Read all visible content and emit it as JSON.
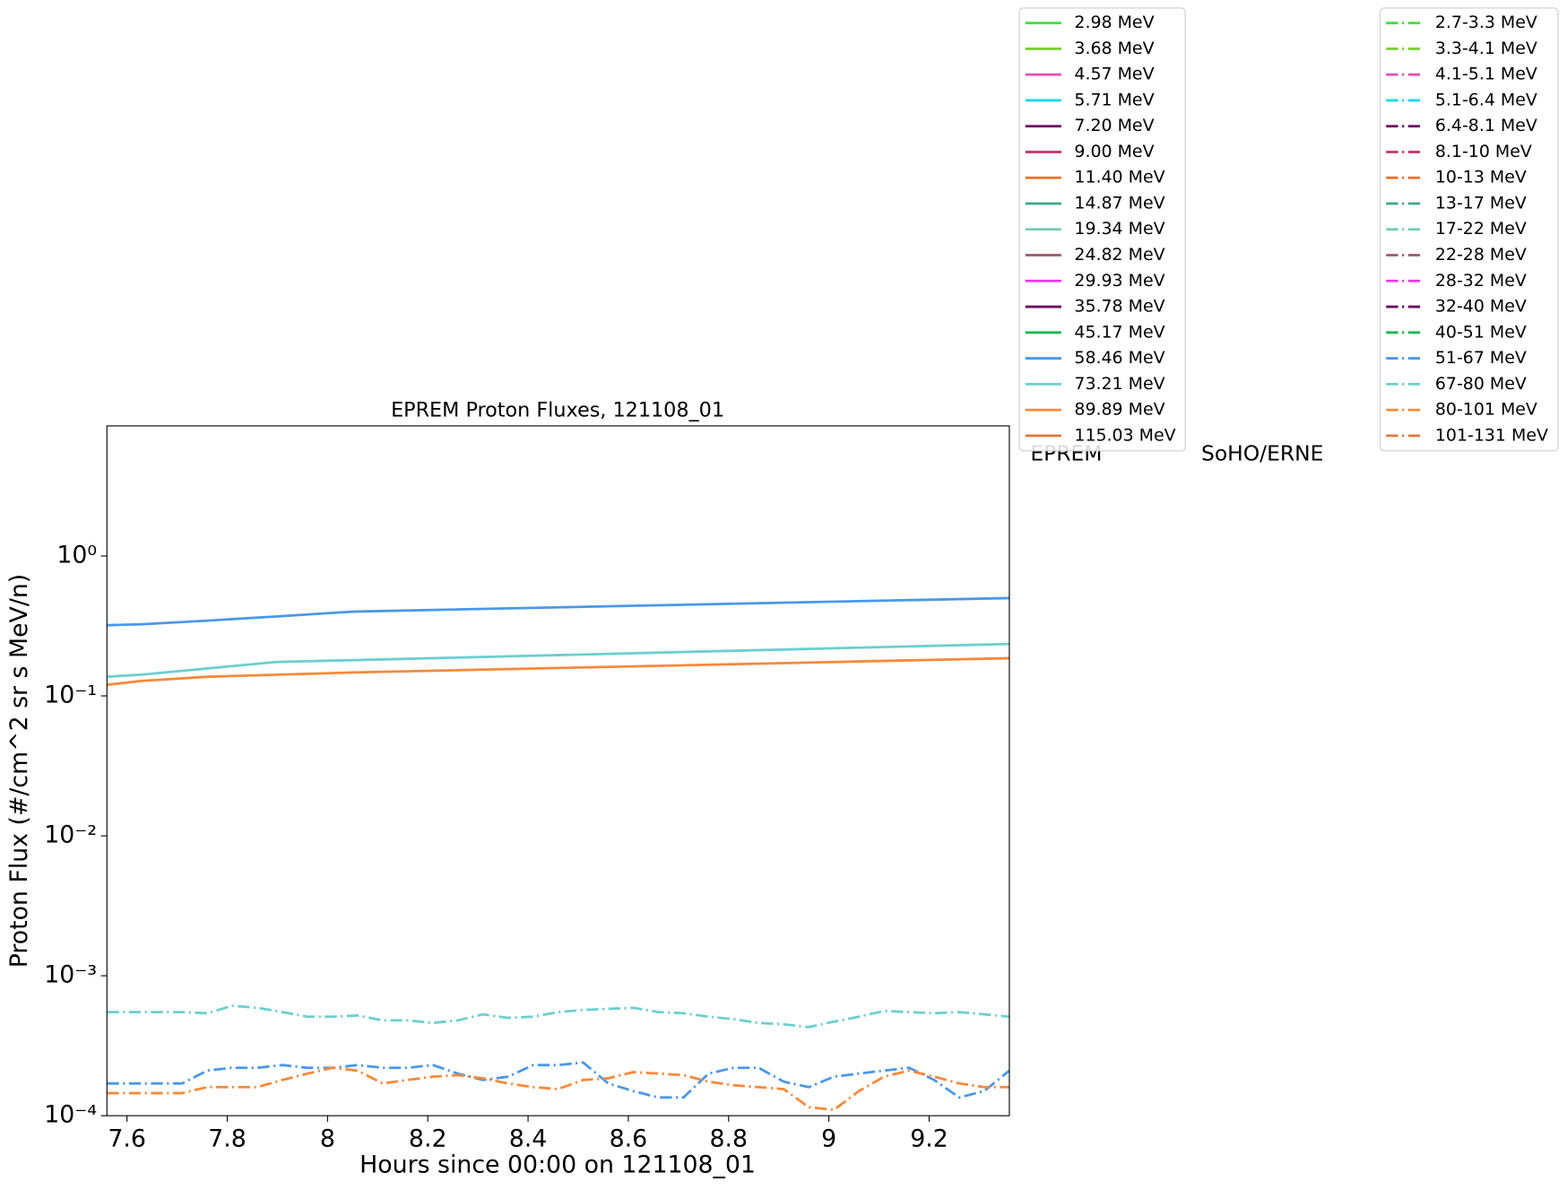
{
  "chart_data": {
    "type": "line",
    "title": "EPREM Proton Fluxes, 121108_01",
    "x_label": "Hours since 00:00 on 121108_01",
    "y_label": "Proton Flux (#/cm^2 sr s MeV/n)",
    "log_y": true,
    "xlim": [
      7.56,
      9.36
    ],
    "ylim": [
      0.0001,
      8.5
    ],
    "xticks": [
      7.6,
      7.8,
      8.0,
      8.2,
      8.4,
      8.6,
      8.8,
      9.0,
      9.2
    ],
    "yticks": [
      {
        "value": 0.0001,
        "label": "10⁻⁴"
      },
      {
        "value": 0.001,
        "label": "10⁻³"
      },
      {
        "value": 0.01,
        "label": "10⁻²"
      },
      {
        "value": 0.1,
        "label": "10⁻¹"
      },
      {
        "value": 1,
        "label": "10⁰"
      }
    ],
    "legend_titles": [
      "EPREM",
      "SoHO/ERNE"
    ],
    "series": [
      {
        "name": "2.98 MeV",
        "color": "#3fe03f",
        "linestyle": "solid"
      },
      {
        "name": "3.68 MeV",
        "color": "#7ccf3a",
        "linestyle": "solid"
      },
      {
        "name": "4.57 MeV",
        "color": "#e055b4",
        "linestyle": "solid"
      },
      {
        "name": "5.71 MeV",
        "color": "#1ad9ee",
        "linestyle": "solid"
      },
      {
        "name": "7.20 MeV",
        "color": "#6b0060",
        "linestyle": "solid"
      },
      {
        "name": "9.00 MeV",
        "color": "#c0306a",
        "linestyle": "solid"
      },
      {
        "name": "11.40 MeV",
        "color": "#e8702a",
        "linestyle": "solid"
      },
      {
        "name": "14.87 MeV",
        "color": "#3aa880",
        "linestyle": "solid"
      },
      {
        "name": "19.34 MeV",
        "color": "#6fcfa8",
        "linestyle": "solid"
      },
      {
        "name": "24.82 MeV",
        "color": "#9a5a6a",
        "linestyle": "solid"
      },
      {
        "name": "29.93 MeV",
        "color": "#e838e8",
        "linestyle": "solid"
      },
      {
        "name": "35.78 MeV",
        "color": "#6b0060",
        "linestyle": "solid"
      },
      {
        "name": "45.17 MeV",
        "color": "#1ab850",
        "linestyle": "solid"
      },
      {
        "name": "58.46 MeV",
        "color": "#4a98e8",
        "linestyle": "solid",
        "x": [
          7.56,
          7.63,
          7.76,
          7.9,
          8.05,
          8.6,
          9.36
        ],
        "values": [
          0.32,
          0.325,
          0.345,
          0.37,
          0.4,
          0.44,
          0.5
        ]
      },
      {
        "name": "73.21 MeV",
        "color": "#6ccfcf",
        "linestyle": "solid",
        "x": [
          7.56,
          7.63,
          7.9,
          8.05,
          9.36
        ],
        "values": [
          0.137,
          0.142,
          0.175,
          0.18,
          0.235
        ]
      },
      {
        "name": "89.89 MeV",
        "color": "#f7893a",
        "linestyle": "solid",
        "x": [
          7.56,
          7.63,
          7.76,
          8.05,
          9.36
        ],
        "values": [
          0.12,
          0.128,
          0.137,
          0.147,
          0.186
        ]
      },
      {
        "name": "115.03 MeV",
        "color": "#e07838",
        "linestyle": "solid"
      },
      {
        "name": "2.7-3.3 MeV",
        "color": "#3fe03f",
        "linestyle": "dashdot"
      },
      {
        "name": "3.3-4.1 MeV",
        "color": "#7ccf3a",
        "linestyle": "dashdot"
      },
      {
        "name": "4.1-5.1 MeV",
        "color": "#e055b4",
        "linestyle": "dashdot"
      },
      {
        "name": "5.1-6.4 MeV",
        "color": "#1ad9ee",
        "linestyle": "dashdot"
      },
      {
        "name": "6.4-8.1 MeV",
        "color": "#6b0060",
        "linestyle": "dashdot"
      },
      {
        "name": "8.1-10 MeV",
        "color": "#c0306a",
        "linestyle": "dashdot"
      },
      {
        "name": "10-13 MeV",
        "color": "#e8702a",
        "linestyle": "dashdot"
      },
      {
        "name": "13-17 MeV",
        "color": "#3aa880",
        "linestyle": "dashdot"
      },
      {
        "name": "17-22 MeV",
        "color": "#6fcfa8",
        "linestyle": "dashdot"
      },
      {
        "name": "22-28 MeV",
        "color": "#9a5a6a",
        "linestyle": "dashdot"
      },
      {
        "name": "28-32 MeV",
        "color": "#e838e8",
        "linestyle": "dashdot"
      },
      {
        "name": "32-40 MeV",
        "color": "#6b0060",
        "linestyle": "dashdot"
      },
      {
        "name": "40-51 MeV",
        "color": "#1ab850",
        "linestyle": "dashdot"
      },
      {
        "name": "51-67 MeV",
        "color": "#4a98e8",
        "linestyle": "dashdot",
        "x": [
          7.56,
          7.61,
          7.66,
          7.71,
          7.76,
          7.81,
          7.86,
          7.91,
          7.96,
          8.01,
          8.06,
          8.11,
          8.16,
          8.21,
          8.26,
          8.31,
          8.36,
          8.41,
          8.46,
          8.51,
          8.56,
          8.61,
          8.66,
          8.71,
          8.76,
          8.81,
          8.86,
          8.91,
          8.96,
          9.01,
          9.06,
          9.11,
          9.16,
          9.21,
          9.26,
          9.31,
          9.36
        ],
        "values": [
          0.00017,
          0.00017,
          0.00017,
          0.00017,
          0.00021,
          0.00022,
          0.00022,
          0.00023,
          0.00022,
          0.00022,
          0.00023,
          0.00022,
          0.00022,
          0.00023,
          0.0002,
          0.00018,
          0.00019,
          0.00023,
          0.00023,
          0.00024,
          0.00017,
          0.00015,
          0.000135,
          0.000135,
          0.0002,
          0.00022,
          0.00022,
          0.000175,
          0.00016,
          0.00019,
          0.0002,
          0.00021,
          0.00022,
          0.00018,
          0.000135,
          0.00015,
          0.00021
        ]
      },
      {
        "name": "67-80 MeV",
        "color": "#6ccfcf",
        "linestyle": "dashdot",
        "x": [
          7.56,
          7.61,
          7.66,
          7.71,
          7.76,
          7.81,
          7.86,
          7.91,
          7.96,
          8.01,
          8.06,
          8.11,
          8.16,
          8.21,
          8.26,
          8.31,
          8.36,
          8.41,
          8.46,
          8.51,
          8.56,
          8.61,
          8.66,
          8.71,
          8.76,
          8.81,
          8.86,
          8.91,
          8.96,
          9.01,
          9.06,
          9.11,
          9.16,
          9.21,
          9.26,
          9.31,
          9.36
        ],
        "values": [
          0.00055,
          0.00055,
          0.00055,
          0.00055,
          0.00054,
          0.00061,
          0.00059,
          0.00055,
          0.00051,
          0.00051,
          0.00052,
          0.00048,
          0.00048,
          0.00046,
          0.00048,
          0.00053,
          0.0005,
          0.00051,
          0.00055,
          0.00057,
          0.00058,
          0.00059,
          0.00055,
          0.00054,
          0.00051,
          0.00049,
          0.00046,
          0.00045,
          0.00043,
          0.00047,
          0.00051,
          0.00056,
          0.00055,
          0.00054,
          0.00055,
          0.00053,
          0.00051
        ]
      },
      {
        "name": "80-101 MeV",
        "color": "#f7893a",
        "linestyle": "dashdot",
        "x": [
          7.56,
          7.61,
          7.66,
          7.71,
          7.76,
          7.81,
          7.86,
          7.91,
          7.96,
          8.01,
          8.06,
          8.11,
          8.16,
          8.21,
          8.26,
          8.31,
          8.36,
          8.41,
          8.46,
          8.51,
          8.56,
          8.61,
          8.66,
          8.71,
          8.76,
          8.81,
          8.86,
          8.91,
          8.96,
          9.01,
          9.06,
          9.11,
          9.16,
          9.21,
          9.26,
          9.31,
          9.36
        ],
        "values": [
          0.000145,
          0.000145,
          0.000145,
          0.000145,
          0.00016,
          0.00016,
          0.00016,
          0.00018,
          0.0002,
          0.00022,
          0.00021,
          0.00017,
          0.00018,
          0.00019,
          0.000195,
          0.000185,
          0.00017,
          0.00016,
          0.000155,
          0.00018,
          0.000185,
          0.000205,
          0.0002,
          0.000195,
          0.000175,
          0.000165,
          0.00016,
          0.000155,
          0.000115,
          0.00011,
          0.00015,
          0.00019,
          0.00021,
          0.00019,
          0.00017,
          0.00016,
          0.00016
        ]
      },
      {
        "name": "101-131 MeV",
        "color": "#e07838",
        "linestyle": "dashdot"
      }
    ]
  }
}
